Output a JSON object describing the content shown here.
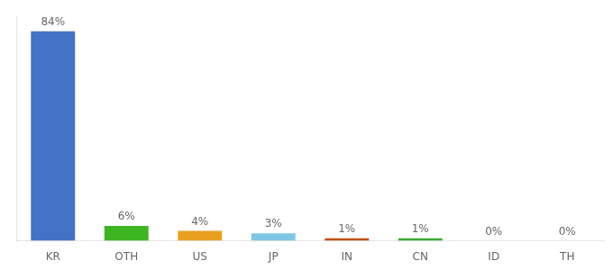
{
  "chart_data": {
    "type": "bar",
    "categories": [
      "KR",
      "OTH",
      "US",
      "JP",
      "IN",
      "CN",
      "ID",
      "TH"
    ],
    "values": [
      84,
      6,
      4,
      3,
      1,
      1,
      0,
      0
    ],
    "value_labels": [
      "84%",
      "6%",
      "4%",
      "3%",
      "1%",
      "1%",
      "0%",
      "0%"
    ],
    "colors": [
      "#4472C4",
      "#3CB521",
      "#E8A020",
      "#7EC8E3",
      "#C0501A",
      "#3AAA35",
      "#4472C4",
      "#4472C4"
    ],
    "ylim": [
      0,
      90
    ],
    "data_labels": true,
    "tick_labels": "x",
    "grid": false
  }
}
